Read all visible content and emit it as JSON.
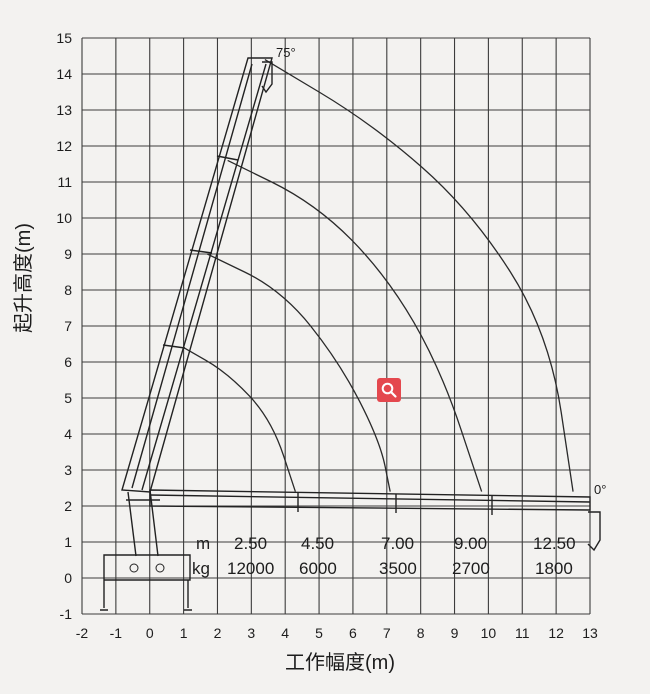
{
  "axes": {
    "xlabel": "工作幅度(m)",
    "ylabel": "起升高度(m)",
    "x_ticks": [
      "-2",
      "-1",
      "0",
      "1",
      "2",
      "3",
      "4",
      "5",
      "6",
      "7",
      "8",
      "9",
      "10",
      "11",
      "12",
      "13"
    ],
    "y_ticks": [
      "-1",
      "0",
      "1",
      "2",
      "3",
      "4",
      "5",
      "6",
      "7",
      "8",
      "9",
      "10",
      "11",
      "12",
      "13",
      "14",
      "15"
    ],
    "xlim": [
      -2,
      13
    ],
    "ylim": [
      -1,
      15
    ]
  },
  "angles": {
    "top": "75°",
    "bottom": "0°"
  },
  "load_table": {
    "unit_m": "m",
    "unit_kg": "kg",
    "radii": [
      "2.50",
      "4.50",
      "7.00",
      "9.00",
      "12.50"
    ],
    "loads": [
      "12000",
      "6000",
      "3500",
      "2700",
      "1800"
    ]
  },
  "chart_data": {
    "type": "line",
    "xlabel": "工作幅度(m)",
    "ylabel": "起升高度(m)",
    "xlim": [
      -2,
      13
    ],
    "ylim": [
      -1,
      15
    ],
    "grid": true,
    "series": [
      {
        "values": [
          [
            1.0,
            6.4
          ],
          [
            2.3,
            5.7
          ],
          [
            3.6,
            4.4
          ],
          [
            4.3,
            2.4
          ]
        ]
      },
      {
        "values": [
          [
            1.7,
            9.0
          ],
          [
            3.9,
            8.0
          ],
          [
            5.6,
            6.0
          ],
          [
            6.8,
            3.8
          ],
          [
            7.1,
            2.4
          ]
        ]
      },
      {
        "values": [
          [
            2.3,
            11.6
          ],
          [
            4.9,
            10.4
          ],
          [
            7.0,
            8.4
          ],
          [
            8.6,
            5.8
          ],
          [
            9.8,
            2.4
          ]
        ]
      },
      {
        "values": [
          [
            3.4,
            14.4
          ],
          [
            6.6,
            12.6
          ],
          [
            9.5,
            10.2
          ],
          [
            11.8,
            6.8
          ],
          [
            12.5,
            2.4
          ]
        ]
      }
    ],
    "load_table": {
      "radius_m": [
        2.5,
        4.5,
        7.0,
        9.0,
        12.5
      ],
      "load_kg": [
        12000,
        6000,
        3500,
        2700,
        1800
      ]
    }
  }
}
